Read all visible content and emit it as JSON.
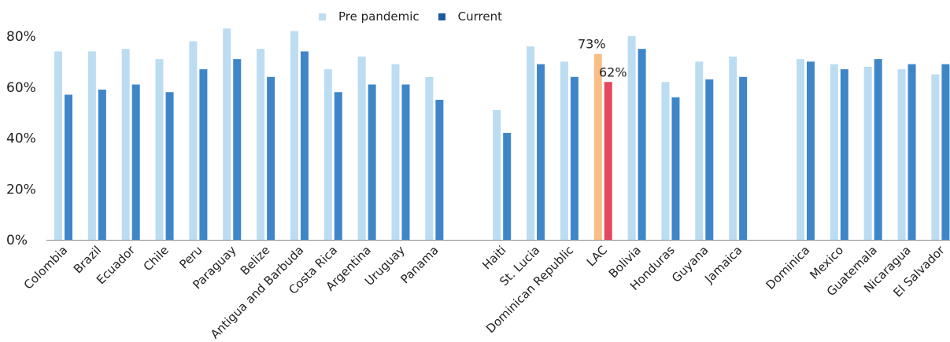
{
  "colors": {
    "pre": "#bcdcf2",
    "current": "#3f86c9",
    "pre_highlight": "#f8be86",
    "current_highlight": "#e5475e",
    "legend_current": "#1b5c9f",
    "axis": "#888888",
    "text": "#222222"
  },
  "chart_data": {
    "type": "bar",
    "title": "",
    "xlabel": "",
    "ylabel": "",
    "ylim": [
      0,
      80
    ],
    "yticks": [
      "0%",
      "20%",
      "40%",
      "60%",
      "80%"
    ],
    "grid": false,
    "legend_position": "top-center",
    "legend": [
      "Pre pandemic",
      "Current"
    ],
    "groups": [
      [
        "Colombia",
        "Brazil",
        "Ecuador",
        "Chile",
        "Peru",
        "Paraguay",
        "Belize",
        "Antigua and Barbuda",
        "Costa Rica",
        "Argentina",
        "Uruguay",
        "Panama"
      ],
      [
        "Haiti",
        "St. Lucia",
        "Dominican Republic",
        "LAC",
        "Bolivia",
        "Honduras",
        "Guyana",
        "Jamaica"
      ],
      [
        "Dominica",
        "Mexico",
        "Guatemala",
        "Nicaragua",
        "El Salvador"
      ]
    ],
    "categories": [
      "Colombia",
      "Brazil",
      "Ecuador",
      "Chile",
      "Peru",
      "Paraguay",
      "Belize",
      "Antigua and Barbuda",
      "Costa Rica",
      "Argentina",
      "Uruguay",
      "Panama",
      "Haiti",
      "St. Lucia",
      "Dominican Republic",
      "LAC",
      "Bolivia",
      "Honduras",
      "Guyana",
      "Jamaica",
      "Dominica",
      "Mexico",
      "Guatemala",
      "Nicaragua",
      "El Salvador"
    ],
    "series": [
      {
        "name": "Pre pandemic",
        "values": [
          74,
          74,
          75,
          71,
          78,
          83,
          75,
          82,
          67,
          72,
          69,
          64,
          51,
          76,
          70,
          73,
          80,
          62,
          70,
          72,
          71,
          69,
          68,
          67,
          65
        ]
      },
      {
        "name": "Current",
        "values": [
          57,
          59,
          61,
          58,
          67,
          71,
          64,
          74,
          58,
          61,
          61,
          55,
          42,
          69,
          64,
          62,
          75,
          56,
          63,
          64,
          70,
          67,
          71,
          69,
          69
        ]
      }
    ],
    "highlight_category": "LAC",
    "annotations": [
      {
        "category": "LAC",
        "series": "Pre pandemic",
        "text": "73%"
      },
      {
        "category": "LAC",
        "series": "Current",
        "text": "62%"
      }
    ]
  }
}
